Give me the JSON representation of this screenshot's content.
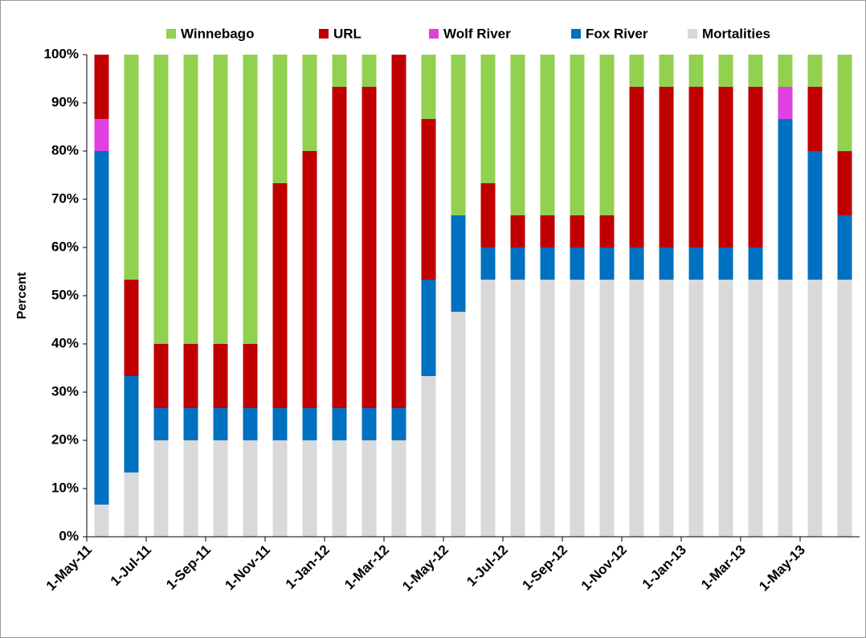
{
  "chart_data": {
    "type": "stacked_bar",
    "categories": [
      "1-May-11",
      null,
      "1-Jul-11",
      null,
      "1-Sep-11",
      null,
      "1-Nov-11",
      null,
      "1-Jan-12",
      null,
      "1-Mar-12",
      null,
      "1-May-12",
      null,
      "1-Jul-12",
      null,
      "1-Sep-12",
      null,
      "1-Nov-12",
      null,
      "1-Jan-13",
      null,
      "1-Mar-13",
      null,
      "1-May-13",
      null
    ],
    "series": [
      {
        "name": "Mortalities",
        "color": "#d9d9d9",
        "values": [
          6.67,
          13.33,
          20,
          20,
          20,
          20,
          20,
          20,
          20,
          20,
          20,
          33.33,
          46.67,
          53.33,
          53.33,
          53.33,
          53.33,
          53.33,
          53.33,
          53.33,
          53.33,
          53.33,
          53.33,
          53.33,
          53.33,
          53.33
        ]
      },
      {
        "name": "Fox River",
        "color": "#0070c0",
        "values": [
          73.33,
          20,
          6.67,
          6.67,
          6.67,
          6.67,
          6.67,
          6.67,
          6.67,
          6.67,
          6.67,
          20,
          20,
          6.67,
          6.67,
          6.67,
          6.67,
          6.67,
          6.67,
          6.67,
          6.67,
          6.67,
          6.67,
          33.33,
          26.67,
          13.33
        ]
      },
      {
        "name": "Wolf River",
        "color": "#e040e0",
        "values": [
          6.67,
          0,
          0,
          0,
          0,
          0,
          0,
          0,
          0,
          0,
          0,
          0,
          0,
          0,
          0,
          0,
          0,
          0,
          0,
          0,
          0,
          0,
          0,
          6.67,
          0,
          0
        ]
      },
      {
        "name": "URL",
        "color": "#c00000",
        "values": [
          13.33,
          20,
          13.33,
          13.33,
          13.33,
          13.33,
          46.67,
          53.33,
          66.67,
          66.67,
          73.33,
          33.33,
          0,
          13.33,
          6.67,
          6.67,
          6.67,
          6.67,
          33.33,
          33.33,
          33.33,
          33.33,
          33.33,
          0,
          13.33,
          13.33
        ]
      },
      {
        "name": "Winnebago",
        "color": "#92d050",
        "values": [
          0,
          46.67,
          60,
          60,
          60,
          60,
          26.67,
          20,
          6.67,
          6.67,
          0,
          13.33,
          33.33,
          26.67,
          33.33,
          33.33,
          33.33,
          33.33,
          6.67,
          6.67,
          6.67,
          6.67,
          6.67,
          6.67,
          6.67,
          20
        ]
      }
    ],
    "ylabel": "Percent",
    "ylim": [
      0,
      100
    ],
    "yticks": [
      {
        "value": 0,
        "label": "0%"
      },
      {
        "value": 10,
        "label": "10%"
      },
      {
        "value": 20,
        "label": "20%"
      },
      {
        "value": 30,
        "label": "30%"
      },
      {
        "value": 40,
        "label": "40%"
      },
      {
        "value": 50,
        "label": "50%"
      },
      {
        "value": 60,
        "label": "60%"
      },
      {
        "value": 70,
        "label": "70%"
      },
      {
        "value": 80,
        "label": "80%"
      },
      {
        "value": 90,
        "label": "90%"
      },
      {
        "value": 100,
        "label": "100%"
      }
    ],
    "grid": false
  }
}
